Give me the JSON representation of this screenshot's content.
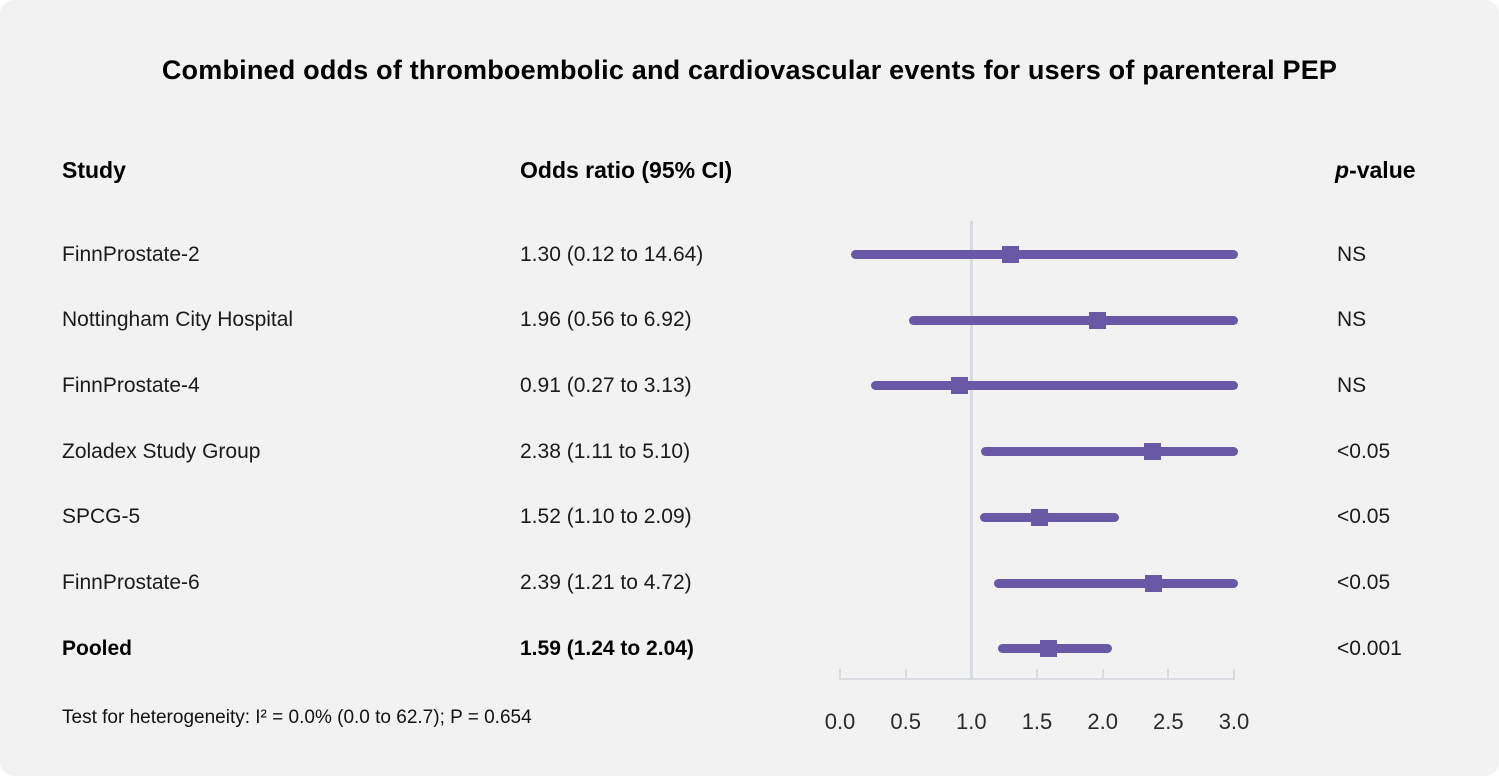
{
  "chart_data": {
    "type": "forest",
    "title": "Combined odds of thromboembolic and cardiovascular events for users of parenteral PEP",
    "columns": {
      "study": "Study",
      "or_ci": "Odds ratio (95% CI)",
      "p_italic": "p",
      "p_rest": "-value"
    },
    "rows": [
      {
        "study": "FinnProstate-2",
        "or_ci_label": "1.30 (0.12 to 14.64)",
        "or": 1.3,
        "ci_low": 0.12,
        "ci_high": 14.64,
        "p": "NS",
        "bold": false
      },
      {
        "study": "Nottingham City Hospital",
        "or_ci_label": "1.96 (0.56 to 6.92)",
        "or": 1.96,
        "ci_low": 0.56,
        "ci_high": 6.92,
        "p": "NS",
        "bold": false
      },
      {
        "study": "FinnProstate-4",
        "or_ci_label": "0.91 (0.27 to 3.13)",
        "or": 0.91,
        "ci_low": 0.27,
        "ci_high": 3.13,
        "p": "NS",
        "bold": false
      },
      {
        "study": "Zoladex Study Group",
        "or_ci_label": "2.38 (1.11 to 5.10)",
        "or": 2.38,
        "ci_low": 1.11,
        "ci_high": 5.1,
        "p": "<0.05",
        "bold": false
      },
      {
        "study": "SPCG-5",
        "or_ci_label": "1.52 (1.10 to 2.09)",
        "or": 1.52,
        "ci_low": 1.1,
        "ci_high": 2.09,
        "p": "<0.05",
        "bold": false
      },
      {
        "study": "FinnProstate-6",
        "or_ci_label": "2.39 (1.21 to 4.72)",
        "or": 2.39,
        "ci_low": 1.21,
        "ci_high": 4.72,
        "p": "<0.05",
        "bold": false
      },
      {
        "study": "Pooled",
        "or_ci_label": "1.59 (1.24 to 2.04)",
        "or": 1.59,
        "ci_low": 1.24,
        "ci_high": 2.04,
        "p": "<0.001",
        "bold": true
      }
    ],
    "axis": {
      "min": 0.0,
      "max": 3.0,
      "ticks": [
        "0.0",
        "0.5",
        "1.0",
        "1.5",
        "2.0",
        "2.5",
        "3.0"
      ],
      "reference": 1.0,
      "grid": false
    },
    "footnote": "Test for heterogeneity: I² = 0.0% (0.0 to 62.7); P = 0.654",
    "colors": {
      "marker": "#6958a5",
      "grid": "#d8dce1",
      "background": "#f2f2f2",
      "text": "#111111"
    }
  }
}
